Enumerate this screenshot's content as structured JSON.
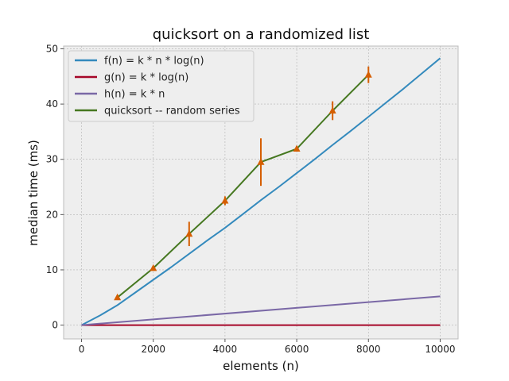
{
  "chart_data": {
    "type": "line",
    "title": "quicksort on a randomized list",
    "xlabel": "elements (n)",
    "ylabel": "median time (ms)",
    "xlim": [
      -500,
      10500
    ],
    "ylim": [
      -2.5,
      50.5
    ],
    "xticks": [
      0,
      2000,
      4000,
      6000,
      8000,
      10000
    ],
    "yticks": [
      0,
      10,
      20,
      30,
      40,
      50
    ],
    "grid": true,
    "legend_position": "top-left",
    "series": [
      {
        "name": "f(n) = k * n * log(n)",
        "color": "#348abd",
        "x": [
          0,
          500,
          1000,
          1500,
          2000,
          2500,
          3000,
          3500,
          4000,
          4500,
          5000,
          5500,
          6000,
          6500,
          7000,
          7500,
          8000,
          8500,
          9000,
          9500,
          10000
        ],
        "y": [
          0,
          1.7,
          3.6,
          5.9,
          8.2,
          10.5,
          12.9,
          15.3,
          17.6,
          20.1,
          22.6,
          25.0,
          27.5,
          30.0,
          32.6,
          35.1,
          37.7,
          40.3,
          42.9,
          45.6,
          48.3
        ]
      },
      {
        "name": "g(n) = k * log(n)",
        "color": "#a60628",
        "x": [
          0,
          10000
        ],
        "y": [
          0,
          0
        ]
      },
      {
        "name": "h(n) = k * n",
        "color": "#7a68a6",
        "x": [
          0,
          10000
        ],
        "y": [
          0,
          5.2
        ]
      },
      {
        "name": "quicksort -- random series",
        "color": "#467821",
        "marker_color": "#d55e00",
        "x": [
          1000,
          2000,
          3000,
          4000,
          5000,
          6000,
          7000,
          8000
        ],
        "y": [
          5.0,
          10.3,
          16.5,
          22.5,
          29.5,
          31.9,
          38.8,
          45.3
        ],
        "error": [
          0.3,
          0.3,
          2.2,
          0.8,
          4.3,
          0.5,
          1.7,
          1.5
        ]
      }
    ]
  }
}
